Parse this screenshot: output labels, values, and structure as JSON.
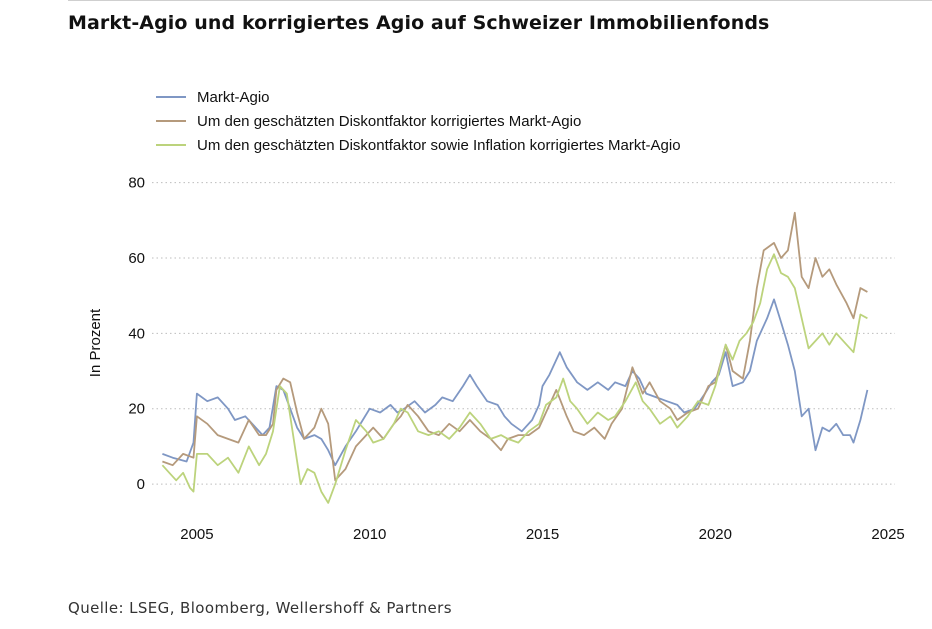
{
  "title": "Markt-Agio und korrigiertes Agio auf Schweizer Immobilienfonds",
  "source": "Quelle: LSEG, Bloomberg, Wellershoff & Partners",
  "colors": {
    "blue": "#7f97c4",
    "brown": "#b59a7c",
    "green": "#bcd37c",
    "grid": "#bdbdbd"
  },
  "chart_data": {
    "type": "line",
    "title": "Markt-Agio und korrigiertes Agio auf Schweizer Immobilienfonds",
    "xlabel": "",
    "ylabel": "In Prozent",
    "xlim": [
      2003.7,
      2025.2
    ],
    "ylim": [
      -9,
      86
    ],
    "xticks": [
      "2005",
      "2010",
      "2015",
      "2020",
      "2025"
    ],
    "yticks": [
      "0",
      "20",
      "40",
      "60",
      "80"
    ],
    "grid": "horizontal dotted",
    "legend_position": "top-left",
    "series": [
      {
        "name": "Markt-Agio",
        "color": "#7f97c4",
        "points": [
          [
            2004.0,
            8
          ],
          [
            2004.3,
            7
          ],
          [
            2004.7,
            6
          ],
          [
            2004.9,
            11
          ],
          [
            2005.0,
            24
          ],
          [
            2005.3,
            22
          ],
          [
            2005.6,
            23
          ],
          [
            2005.9,
            20
          ],
          [
            2006.1,
            17
          ],
          [
            2006.4,
            18
          ],
          [
            2006.7,
            15
          ],
          [
            2006.9,
            13
          ],
          [
            2007.1,
            15
          ],
          [
            2007.3,
            26
          ],
          [
            2007.5,
            25
          ],
          [
            2007.7,
            20
          ],
          [
            2007.9,
            15
          ],
          [
            2008.1,
            12
          ],
          [
            2008.4,
            13
          ],
          [
            2008.6,
            12
          ],
          [
            2008.8,
            9
          ],
          [
            2009.0,
            5
          ],
          [
            2009.3,
            10
          ],
          [
            2009.6,
            14
          ],
          [
            2009.8,
            17
          ],
          [
            2010.0,
            20
          ],
          [
            2010.3,
            19
          ],
          [
            2010.6,
            21
          ],
          [
            2010.8,
            19
          ],
          [
            2011.0,
            20
          ],
          [
            2011.3,
            22
          ],
          [
            2011.6,
            19
          ],
          [
            2011.9,
            21
          ],
          [
            2012.1,
            23
          ],
          [
            2012.4,
            22
          ],
          [
            2012.7,
            26
          ],
          [
            2012.9,
            29
          ],
          [
            2013.1,
            26
          ],
          [
            2013.4,
            22
          ],
          [
            2013.7,
            21
          ],
          [
            2013.9,
            18
          ],
          [
            2014.1,
            16
          ],
          [
            2014.4,
            14
          ],
          [
            2014.7,
            17
          ],
          [
            2014.9,
            21
          ],
          [
            2015.0,
            26
          ],
          [
            2015.2,
            29
          ],
          [
            2015.5,
            35
          ],
          [
            2015.7,
            31
          ],
          [
            2016.0,
            27
          ],
          [
            2016.3,
            25
          ],
          [
            2016.6,
            27
          ],
          [
            2016.9,
            25
          ],
          [
            2017.1,
            27
          ],
          [
            2017.4,
            26
          ],
          [
            2017.6,
            30
          ],
          [
            2017.8,
            28
          ],
          [
            2018.0,
            24
          ],
          [
            2018.3,
            23
          ],
          [
            2018.6,
            22
          ],
          [
            2018.9,
            21
          ],
          [
            2019.1,
            19
          ],
          [
            2019.4,
            20
          ],
          [
            2019.7,
            24
          ],
          [
            2019.9,
            27
          ],
          [
            2020.1,
            29
          ],
          [
            2020.3,
            35
          ],
          [
            2020.5,
            26
          ],
          [
            2020.8,
            27
          ],
          [
            2021.0,
            30
          ],
          [
            2021.2,
            38
          ],
          [
            2021.5,
            44
          ],
          [
            2021.7,
            49
          ],
          [
            2021.9,
            43
          ],
          [
            2022.1,
            37
          ],
          [
            2022.3,
            30
          ],
          [
            2022.5,
            18
          ],
          [
            2022.7,
            20
          ],
          [
            2022.9,
            9
          ],
          [
            2023.1,
            15
          ],
          [
            2023.3,
            14
          ],
          [
            2023.5,
            16
          ],
          [
            2023.7,
            13
          ],
          [
            2023.9,
            13
          ],
          [
            2024.0,
            11
          ],
          [
            2024.2,
            17
          ],
          [
            2024.4,
            25
          ]
        ]
      },
      {
        "name": "Um den geschätzten Diskontfaktor korrigiertes Markt-Agio",
        "color": "#b59a7c",
        "points": [
          [
            2004.0,
            6
          ],
          [
            2004.3,
            5
          ],
          [
            2004.6,
            8
          ],
          [
            2004.9,
            7
          ],
          [
            2005.0,
            18
          ],
          [
            2005.3,
            16
          ],
          [
            2005.6,
            13
          ],
          [
            2005.9,
            12
          ],
          [
            2006.2,
            11
          ],
          [
            2006.5,
            17
          ],
          [
            2006.8,
            13
          ],
          [
            2007.0,
            13
          ],
          [
            2007.2,
            16
          ],
          [
            2007.3,
            25
          ],
          [
            2007.5,
            28
          ],
          [
            2007.7,
            27
          ],
          [
            2007.9,
            19
          ],
          [
            2008.1,
            12
          ],
          [
            2008.4,
            15
          ],
          [
            2008.6,
            20
          ],
          [
            2008.8,
            16
          ],
          [
            2009.0,
            1
          ],
          [
            2009.3,
            4
          ],
          [
            2009.6,
            10
          ],
          [
            2009.9,
            13
          ],
          [
            2010.1,
            15
          ],
          [
            2010.4,
            12
          ],
          [
            2010.7,
            16
          ],
          [
            2010.9,
            18
          ],
          [
            2011.1,
            21
          ],
          [
            2011.4,
            18
          ],
          [
            2011.7,
            14
          ],
          [
            2012.0,
            13
          ],
          [
            2012.3,
            16
          ],
          [
            2012.6,
            14
          ],
          [
            2012.9,
            17
          ],
          [
            2013.2,
            14
          ],
          [
            2013.5,
            12
          ],
          [
            2013.8,
            9
          ],
          [
            2014.0,
            12
          ],
          [
            2014.3,
            13
          ],
          [
            2014.6,
            13
          ],
          [
            2014.9,
            15
          ],
          [
            2015.1,
            19
          ],
          [
            2015.4,
            25
          ],
          [
            2015.7,
            18
          ],
          [
            2015.9,
            14
          ],
          [
            2016.2,
            13
          ],
          [
            2016.5,
            15
          ],
          [
            2016.8,
            12
          ],
          [
            2017.0,
            16
          ],
          [
            2017.3,
            20
          ],
          [
            2017.6,
            31
          ],
          [
            2017.9,
            24
          ],
          [
            2018.1,
            27
          ],
          [
            2018.4,
            22
          ],
          [
            2018.7,
            20
          ],
          [
            2018.9,
            17
          ],
          [
            2019.2,
            19
          ],
          [
            2019.5,
            20
          ],
          [
            2019.8,
            26
          ],
          [
            2020.0,
            27
          ],
          [
            2020.3,
            37
          ],
          [
            2020.5,
            30
          ],
          [
            2020.8,
            28
          ],
          [
            2021.0,
            38
          ],
          [
            2021.2,
            52
          ],
          [
            2021.4,
            62
          ],
          [
            2021.7,
            64
          ],
          [
            2021.9,
            60
          ],
          [
            2022.1,
            62
          ],
          [
            2022.3,
            72
          ],
          [
            2022.5,
            55
          ],
          [
            2022.7,
            52
          ],
          [
            2022.9,
            60
          ],
          [
            2023.1,
            55
          ],
          [
            2023.3,
            57
          ],
          [
            2023.5,
            53
          ],
          [
            2023.8,
            48
          ],
          [
            2024.0,
            44
          ],
          [
            2024.2,
            52
          ],
          [
            2024.4,
            51
          ]
        ]
      },
      {
        "name": "Um den geschätzten Diskontfaktor sowie Inflation korrigiertes Markt-Agio",
        "color": "#bcd37c",
        "points": [
          [
            2004.0,
            5
          ],
          [
            2004.2,
            3
          ],
          [
            2004.4,
            1
          ],
          [
            2004.6,
            3
          ],
          [
            2004.8,
            -1
          ],
          [
            2004.9,
            -2
          ],
          [
            2005.0,
            8
          ],
          [
            2005.3,
            8
          ],
          [
            2005.6,
            5
          ],
          [
            2005.9,
            7
          ],
          [
            2006.2,
            3
          ],
          [
            2006.5,
            10
          ],
          [
            2006.8,
            5
          ],
          [
            2007.0,
            8
          ],
          [
            2007.2,
            14
          ],
          [
            2007.4,
            26
          ],
          [
            2007.6,
            24
          ],
          [
            2007.8,
            12
          ],
          [
            2008.0,
            0
          ],
          [
            2008.2,
            4
          ],
          [
            2008.4,
            3
          ],
          [
            2008.6,
            -2
          ],
          [
            2008.8,
            -5
          ],
          [
            2009.0,
            0
          ],
          [
            2009.3,
            9
          ],
          [
            2009.6,
            17
          ],
          [
            2009.9,
            14
          ],
          [
            2010.1,
            11
          ],
          [
            2010.4,
            12
          ],
          [
            2010.7,
            16
          ],
          [
            2010.9,
            20
          ],
          [
            2011.1,
            19
          ],
          [
            2011.4,
            14
          ],
          [
            2011.7,
            13
          ],
          [
            2012.0,
            14
          ],
          [
            2012.3,
            12
          ],
          [
            2012.6,
            15
          ],
          [
            2012.9,
            19
          ],
          [
            2013.2,
            16
          ],
          [
            2013.5,
            12
          ],
          [
            2013.8,
            13
          ],
          [
            2014.0,
            12
          ],
          [
            2014.3,
            11
          ],
          [
            2014.6,
            14
          ],
          [
            2014.9,
            16
          ],
          [
            2015.1,
            21
          ],
          [
            2015.4,
            23
          ],
          [
            2015.6,
            28
          ],
          [
            2015.8,
            22
          ],
          [
            2016.0,
            20
          ],
          [
            2016.3,
            16
          ],
          [
            2016.6,
            19
          ],
          [
            2016.9,
            17
          ],
          [
            2017.1,
            18
          ],
          [
            2017.4,
            22
          ],
          [
            2017.7,
            27
          ],
          [
            2017.9,
            22
          ],
          [
            2018.1,
            20
          ],
          [
            2018.4,
            16
          ],
          [
            2018.7,
            18
          ],
          [
            2018.9,
            15
          ],
          [
            2019.2,
            18
          ],
          [
            2019.5,
            22
          ],
          [
            2019.8,
            21
          ],
          [
            2020.0,
            26
          ],
          [
            2020.3,
            37
          ],
          [
            2020.5,
            33
          ],
          [
            2020.7,
            38
          ],
          [
            2020.9,
            40
          ],
          [
            2021.1,
            43
          ],
          [
            2021.3,
            48
          ],
          [
            2021.5,
            57
          ],
          [
            2021.7,
            61
          ],
          [
            2021.9,
            56
          ],
          [
            2022.1,
            55
          ],
          [
            2022.3,
            52
          ],
          [
            2022.5,
            44
          ],
          [
            2022.7,
            36
          ],
          [
            2022.9,
            38
          ],
          [
            2023.1,
            40
          ],
          [
            2023.3,
            37
          ],
          [
            2023.5,
            40
          ],
          [
            2023.8,
            37
          ],
          [
            2024.0,
            35
          ],
          [
            2024.2,
            45
          ],
          [
            2024.4,
            44
          ]
        ]
      }
    ]
  }
}
